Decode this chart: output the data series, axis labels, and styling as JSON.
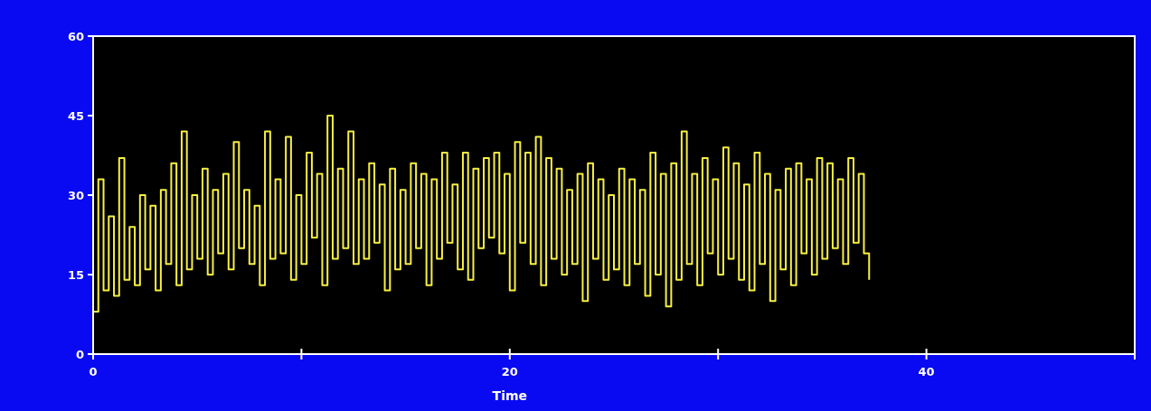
{
  "chart_data": {
    "type": "step",
    "xlabel": "Time",
    "xlim": [
      0,
      50
    ],
    "ylim": [
      0,
      60
    ],
    "xticks": [
      0,
      {
        "value": 10,
        "label": null
      },
      20,
      {
        "value": 30,
        "label": null
      },
      40,
      {
        "value": 50,
        "label": null
      }
    ],
    "yticks": [
      0,
      15,
      30,
      45,
      60
    ],
    "grid": false,
    "marker": "none",
    "line_style": "solid",
    "x": [
      0,
      0.25,
      0.5,
      0.75,
      1,
      1.25,
      1.5,
      1.75,
      2,
      2.25,
      2.5,
      2.75,
      3,
      3.25,
      3.5,
      3.75,
      4,
      4.25,
      4.5,
      4.75,
      5,
      5.25,
      5.5,
      5.75,
      6,
      6.25,
      6.5,
      6.75,
      7,
      7.25,
      7.5,
      7.75,
      8,
      8.25,
      8.5,
      8.75,
      9,
      9.25,
      9.5,
      9.75,
      10,
      10.25,
      10.5,
      10.75,
      11,
      11.25,
      11.5,
      11.75,
      12,
      12.25,
      12.5,
      12.75,
      13,
      13.25,
      13.5,
      13.75,
      14,
      14.25,
      14.5,
      14.75,
      15,
      15.25,
      15.5,
      15.75,
      16,
      16.25,
      16.5,
      16.75,
      17,
      17.25,
      17.5,
      17.75,
      18,
      18.25,
      18.5,
      18.75,
      19,
      19.25,
      19.5,
      19.75,
      20,
      20.25,
      20.5,
      20.75,
      21,
      21.25,
      21.5,
      21.75,
      22,
      22.25,
      22.5,
      22.75,
      23,
      23.25,
      23.5,
      23.75,
      24,
      24.25,
      24.5,
      24.75,
      25,
      25.25,
      25.5,
      25.75,
      26,
      26.25,
      26.5,
      26.75,
      27,
      27.25,
      27.5,
      27.75,
      28,
      28.25,
      28.5,
      28.75,
      29,
      29.25,
      29.5,
      29.75,
      30,
      30.25,
      30.5,
      30.75,
      31,
      31.25,
      31.5,
      31.75,
      32,
      32.25,
      32.5,
      32.75,
      33,
      33.25,
      33.5,
      33.75,
      34,
      34.25,
      34.5,
      34.75,
      35,
      35.25,
      35.5,
      35.75,
      36,
      36.25,
      36.5,
      36.75,
      37,
      37.25
    ],
    "series": [
      {
        "color": "#f8f040",
        "values": [
          8,
          33,
          12,
          26,
          11,
          37,
          14,
          24,
          13,
          30,
          16,
          28,
          12,
          31,
          17,
          36,
          13,
          42,
          16,
          30,
          18,
          35,
          15,
          31,
          19,
          34,
          16,
          40,
          20,
          31,
          17,
          28,
          13,
          42,
          18,
          33,
          19,
          41,
          14,
          30,
          17,
          38,
          22,
          34,
          13,
          45,
          18,
          35,
          20,
          42,
          17,
          33,
          18,
          36,
          21,
          32,
          12,
          35,
          16,
          31,
          17,
          36,
          20,
          34,
          13,
          33,
          18,
          38,
          21,
          32,
          16,
          38,
          14,
          35,
          20,
          37,
          22,
          38,
          19,
          34,
          12,
          40,
          21,
          38,
          17,
          41,
          13,
          37,
          18,
          35,
          15,
          31,
          17,
          34,
          10,
          36,
          18,
          33,
          14,
          30,
          16,
          35,
          13,
          33,
          17,
          31,
          11,
          38,
          15,
          34,
          9,
          36,
          14,
          42,
          17,
          34,
          13,
          37,
          19,
          33,
          15,
          39,
          18,
          36,
          14,
          32,
          12,
          38,
          17,
          34,
          10,
          31,
          16,
          35,
          13,
          36,
          19,
          33,
          15,
          37,
          18,
          36,
          20,
          33,
          17,
          37,
          21,
          34,
          19,
          14
        ]
      }
    ]
  }
}
